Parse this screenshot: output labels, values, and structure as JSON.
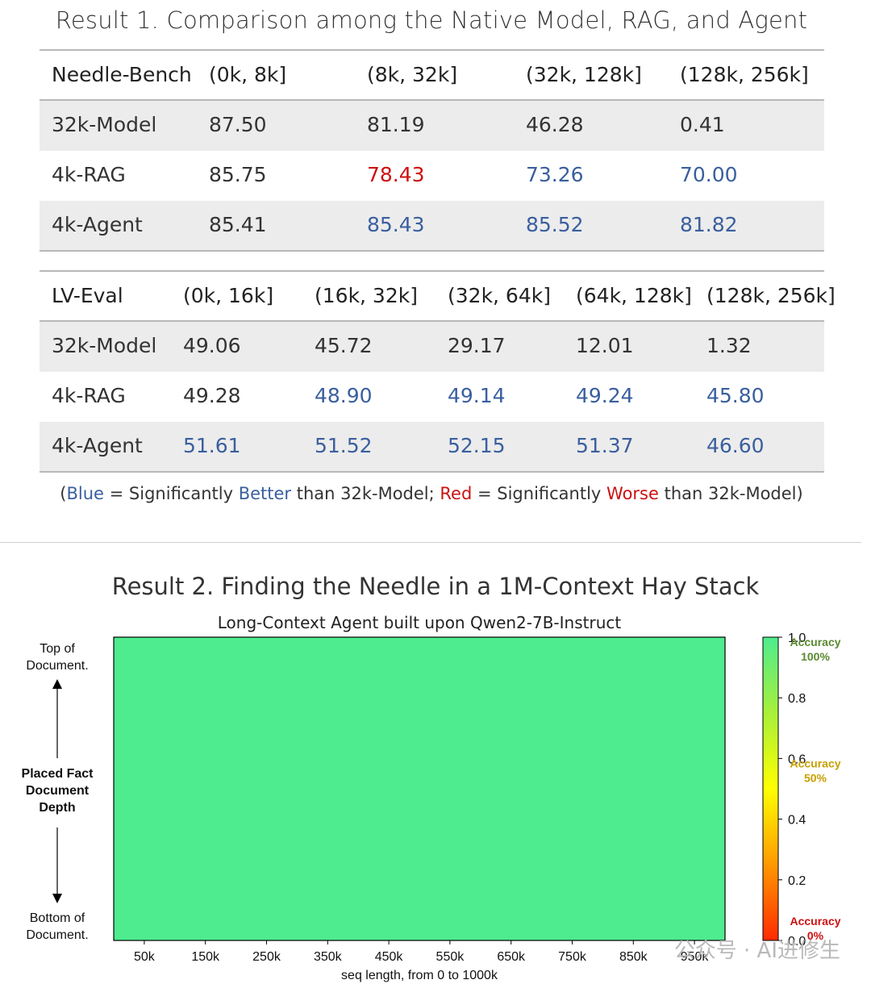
{
  "result1_title": "Result 1. Comparison among the Native Model, RAG, and Agent",
  "table1": {
    "headers": [
      "Needle-Bench",
      "(0k, 8k]",
      "(8k, 32k]",
      "(32k, 128k]",
      "(128k, 256k]"
    ],
    "rows": [
      {
        "label": "32k-Model",
        "values": [
          "87.50",
          "81.19",
          "46.28",
          "0.41"
        ],
        "colors": [
          "n",
          "n",
          "n",
          "n"
        ]
      },
      {
        "label": "4k-RAG",
        "values": [
          "85.75",
          "78.43",
          "73.26",
          "70.00"
        ],
        "colors": [
          "n",
          "r",
          "b",
          "b"
        ]
      },
      {
        "label": "4k-Agent",
        "values": [
          "85.41",
          "85.43",
          "85.52",
          "81.82"
        ],
        "colors": [
          "n",
          "b",
          "b",
          "b"
        ]
      }
    ]
  },
  "table2": {
    "headers": [
      "LV-Eval",
      "(0k, 16k]",
      "(16k, 32k]",
      "(32k, 64k]",
      "(64k, 128k]",
      "(128k, 256k]"
    ],
    "rows": [
      {
        "label": "32k-Model",
        "values": [
          "49.06",
          "45.72",
          "29.17",
          "12.01",
          "1.32"
        ],
        "colors": [
          "n",
          "n",
          "n",
          "n",
          "n"
        ]
      },
      {
        "label": "4k-RAG",
        "values": [
          "49.28",
          "48.90",
          "49.14",
          "49.24",
          "45.80"
        ],
        "colors": [
          "n",
          "b",
          "b",
          "b",
          "b"
        ]
      },
      {
        "label": "4k-Agent",
        "values": [
          "51.61",
          "51.52",
          "52.15",
          "51.37",
          "46.60"
        ],
        "colors": [
          "b",
          "b",
          "b",
          "b",
          "b"
        ]
      }
    ]
  },
  "legend_note": {
    "open": "(",
    "blue_word": "Blue",
    "eq1": " = Significantly ",
    "better": "Better",
    "mid": " than 32k-Model; ",
    "red_word": "Red",
    "eq2": " = Significantly ",
    "worse": "Worse",
    "end": " than 32k-Model)"
  },
  "colors": {
    "blue": "#3a5f9e",
    "red": "#cc1111",
    "heat": "#4eec8e"
  },
  "result2_title": "Result 2. Finding the Needle in a 1M-Context Hay Stack",
  "chart_data": {
    "type": "heatmap",
    "title": "Long-Context Agent built upon Qwen2-7B-Instruct",
    "xlabel": "seq length, from 0 to 1000k",
    "x_ticks": [
      "50k",
      "150k",
      "250k",
      "350k",
      "450k",
      "550k",
      "650k",
      "750k",
      "850k",
      "950k"
    ],
    "y_label": [
      "Placed Fact",
      "Document",
      "Depth"
    ],
    "y_top": [
      "Top of",
      "Document."
    ],
    "y_bottom": [
      "Bottom of",
      "Document."
    ],
    "value": 1.0,
    "colorbar": {
      "range": [
        0,
        1
      ],
      "ticks": [
        "1.0",
        "0.8",
        "0.6",
        "0.4",
        "0.2",
        "0.0"
      ],
      "annotations": [
        {
          "lines": [
            "Accuracy",
            "100%"
          ],
          "color": "#5a8a30"
        },
        {
          "lines": [
            "Accuracy",
            "50%"
          ],
          "color": "#c8a000"
        },
        {
          "lines": [
            "Accuracy",
            "0%"
          ],
          "color": "#cc1111"
        }
      ]
    }
  },
  "watermark": "公众号 · AI进修生"
}
